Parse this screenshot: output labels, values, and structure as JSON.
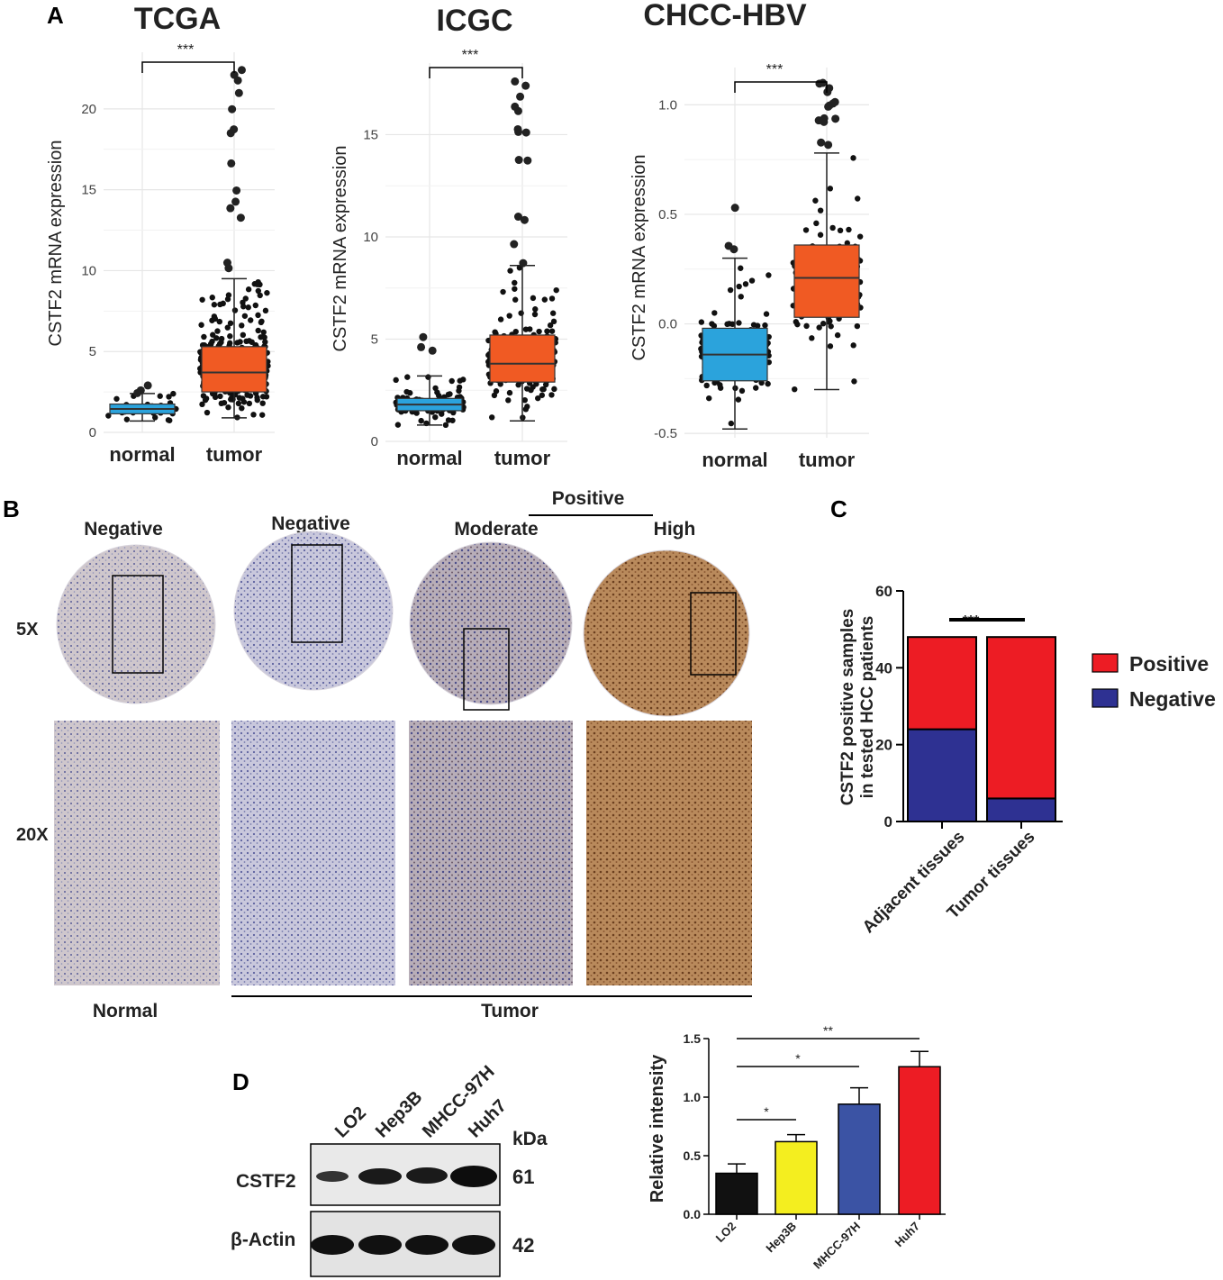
{
  "panel_labels": {
    "a": "A",
    "b": "B",
    "c": "C",
    "d": "D"
  },
  "colors": {
    "normal_box": "#2ba3dc",
    "tumor_box": "#f05a23",
    "positive": "#ed1c24",
    "negative": "#2e3192",
    "lo2": "#111111",
    "hep3b": "#f4ee1f",
    "mhcc": "#3b53a4",
    "huh7": "#ed1c24"
  },
  "chart_data": [
    {
      "type": "box",
      "title": "TCGA",
      "ylabel": "CSTF2 mRNA expression",
      "categories": [
        "normal",
        "tumor"
      ],
      "ylim": [
        0,
        23.5
      ],
      "yticks": [
        0,
        5,
        10,
        15,
        20
      ],
      "boxes": [
        {
          "category": "normal",
          "whisker_low": 0.7,
          "q1": 1.15,
          "median": 1.45,
          "q3": 1.75,
          "whisker_high": 2.4,
          "max": 2.9,
          "n_points": 50
        },
        {
          "category": "tumor",
          "whisker_low": 0.9,
          "q1": 2.5,
          "median": 3.7,
          "q3": 5.3,
          "whisker_high": 9.5,
          "max": 22.4,
          "n_points": 370
        }
      ],
      "significance": "***"
    },
    {
      "type": "box",
      "title": "ICGC",
      "ylabel": "CSTF2 mRNA expression",
      "categories": [
        "normal",
        "tumor"
      ],
      "ylim": [
        0,
        18.5
      ],
      "yticks": [
        0,
        5,
        10,
        15
      ],
      "boxes": [
        {
          "category": "normal",
          "whisker_low": 0.8,
          "q1": 1.5,
          "median": 1.8,
          "q3": 2.1,
          "whisker_high": 3.2,
          "max": 5.1,
          "n_points": 200
        },
        {
          "category": "tumor",
          "whisker_low": 1.0,
          "q1": 2.9,
          "median": 3.8,
          "q3": 5.2,
          "whisker_high": 8.6,
          "max": 17.6,
          "n_points": 240
        }
      ],
      "significance": "***"
    },
    {
      "type": "box",
      "title": "CHCC-HBV",
      "ylabel": "CSTF2 mRNA expression",
      "categories": [
        "normal",
        "tumor"
      ],
      "ylim": [
        -0.52,
        1.17
      ],
      "yticks": [
        -0.5,
        0.0,
        0.5,
        1.0
      ],
      "yticklabels": [
        "-0.5",
        "0.0",
        "0.5",
        "1.0"
      ],
      "boxes": [
        {
          "category": "normal",
          "whisker_low": -0.48,
          "q1": -0.26,
          "median": -0.14,
          "q3": -0.02,
          "whisker_high": 0.3,
          "max": 0.53,
          "n_points": 150
        },
        {
          "category": "tumor",
          "whisker_low": -0.3,
          "q1": 0.03,
          "median": 0.21,
          "q3": 0.36,
          "whisker_high": 0.78,
          "max": 1.1,
          "n_points": 150
        }
      ],
      "significance": "***"
    },
    {
      "type": "bar",
      "stacked": true,
      "ylabel": "CSTF2 positive samples in tested HCC patients",
      "categories": [
        "Adjacent tissues",
        "Tumor tissues"
      ],
      "ylim": [
        0,
        60
      ],
      "yticks": [
        0,
        20,
        40,
        60
      ],
      "series": [
        {
          "name": "Negative",
          "values": [
            24,
            6
          ]
        },
        {
          "name": "Positive",
          "values": [
            24,
            42
          ]
        }
      ],
      "legend": "right",
      "significance": "***"
    },
    {
      "type": "bar",
      "ylabel": "Relative intensity",
      "categories": [
        "LO2",
        "Hep3B",
        "MHCC-97H",
        "Huh7"
      ],
      "values": [
        0.35,
        0.62,
        0.94,
        1.26
      ],
      "errors": [
        0.08,
        0.06,
        0.14,
        0.13
      ],
      "ylim": [
        0,
        1.5
      ],
      "yticks": [
        0.0,
        0.5,
        1.0,
        1.5
      ],
      "yticklabels": [
        "0.0",
        "0.5",
        "1.0",
        "1.5"
      ],
      "comparisons": [
        {
          "from": 0,
          "to": 1,
          "label": "*"
        },
        {
          "from": 0,
          "to": 2,
          "label": "*"
        },
        {
          "from": 0,
          "to": 3,
          "label": "**"
        }
      ]
    }
  ],
  "ihc": {
    "positive_label": "Positive",
    "columns": [
      "Negative",
      "Negative",
      "Moderate",
      "High"
    ],
    "rows": [
      "5X",
      "20X"
    ],
    "groups": [
      "Normal",
      "Tumor"
    ]
  },
  "western": {
    "lanes": [
      "LO2",
      "Hep3B",
      "MHCC-97H",
      "Huh7"
    ],
    "unit": "kDa",
    "bands": [
      {
        "name": "CSTF2",
        "kda": "61"
      },
      {
        "name": "β-Actin",
        "kda": "42"
      }
    ]
  }
}
